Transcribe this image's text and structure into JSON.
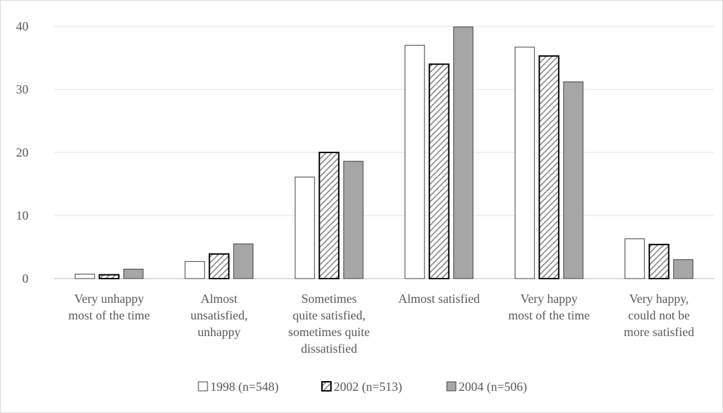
{
  "chart_data": {
    "type": "bar",
    "title": "",
    "xlabel": "",
    "ylabel": "",
    "ylim": [
      0,
      40
    ],
    "yticks": [
      0,
      10,
      20,
      30,
      40
    ],
    "grid": true,
    "legend_position": "bottom",
    "categories": [
      [
        "Very unhappy",
        "most of the time"
      ],
      [
        "Almost",
        "unsatisfied,",
        "unhappy"
      ],
      [
        "Sometimes",
        "quite satisfied,",
        "sometimes quite",
        "dissatisfied"
      ],
      [
        "Almost satisfied"
      ],
      [
        "Very happy",
        "most of the time"
      ],
      [
        "Very happy,",
        "could not be",
        "more satisfied"
      ]
    ],
    "series": [
      {
        "name": "1998 (n=548)",
        "fill": "#ffffff",
        "pattern": "solid",
        "values": [
          0.7,
          2.7,
          16.1,
          37.0,
          36.7,
          6.3
        ]
      },
      {
        "name": "2002 (n=513)",
        "fill": "#ffffff",
        "pattern": "diagonal-hatch",
        "values": [
          0.6,
          3.9,
          20.0,
          34.0,
          35.3,
          5.4
        ]
      },
      {
        "name": "2004 (n=506)",
        "fill": "#a6a6a6",
        "pattern": "solid",
        "values": [
          1.5,
          5.5,
          18.6,
          39.9,
          31.2,
          3.0
        ]
      }
    ]
  }
}
